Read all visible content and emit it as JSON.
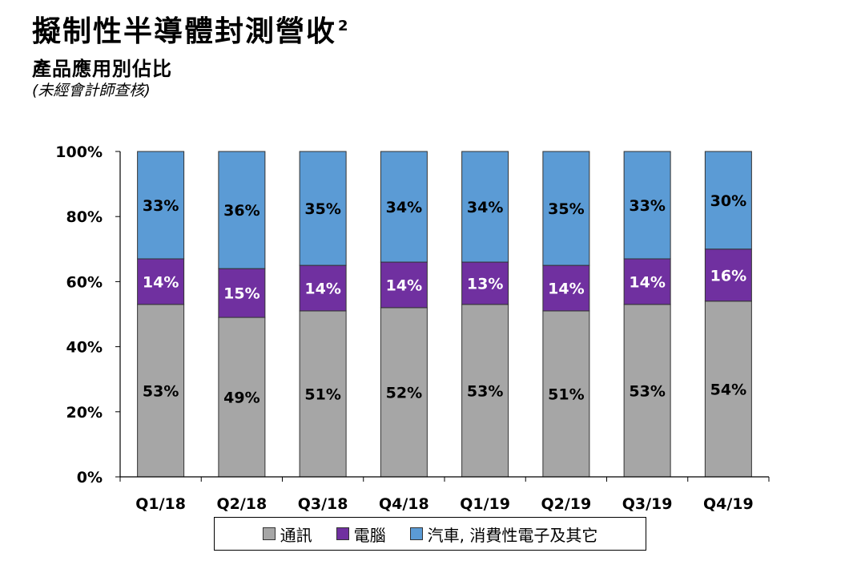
{
  "header": {
    "title": "擬制性半導體封測營收",
    "title_sup": "2",
    "subtitle": "產品應用別佔比",
    "note": "(未經會計師查核)"
  },
  "chart_data": {
    "type": "bar",
    "stacked": true,
    "categories": [
      "Q1/18",
      "Q2/18",
      "Q3/18",
      "Q4/18",
      "Q1/19",
      "Q2/19",
      "Q3/19",
      "Q4/19"
    ],
    "series": [
      {
        "name": "通訊",
        "color": "#a6a6a6",
        "values": [
          53,
          49,
          51,
          52,
          53,
          51,
          53,
          54
        ]
      },
      {
        "name": "電腦",
        "color": "#7030a0",
        "values": [
          14,
          15,
          14,
          14,
          13,
          14,
          14,
          16
        ]
      },
      {
        "name": "汽車, 消費性電子及其它",
        "color": "#5b9bd5",
        "values": [
          33,
          36,
          35,
          34,
          34,
          35,
          33,
          30
        ]
      }
    ],
    "ylim": [
      0,
      100
    ],
    "yticks": [
      "0%",
      "20%",
      "40%",
      "60%",
      "80%",
      "100%"
    ],
    "data_label_suffix": "%",
    "legend_position": "bottom",
    "grid": false
  }
}
